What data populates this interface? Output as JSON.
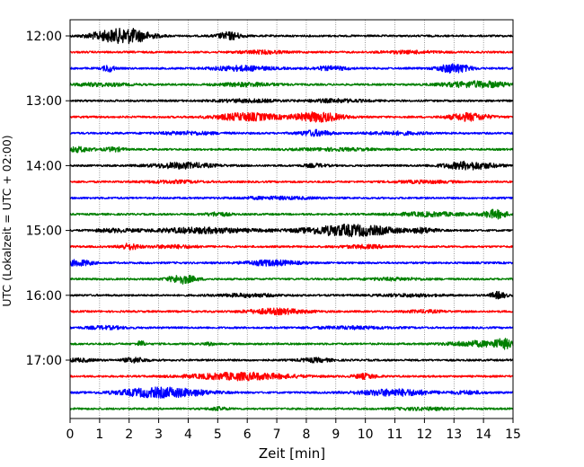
{
  "chart_data": {
    "type": "line",
    "title": "",
    "xlabel": "Zeit  [min]",
    "ylabel": "UTC (Lokalzeit = UTC + 02:00)",
    "xlim": [
      0,
      15
    ],
    "x_ticks": [
      "0",
      "1",
      "2",
      "3",
      "4",
      "5",
      "6",
      "7",
      "8",
      "9",
      "10",
      "11",
      "12",
      "13",
      "14",
      "15"
    ],
    "y_ticks": [
      {
        "label": "12:00",
        "row": 0
      },
      {
        "label": "13:00",
        "row": 4
      },
      {
        "label": "14:00",
        "row": 8
      },
      {
        "label": "15:00",
        "row": 12
      },
      {
        "label": "16:00",
        "row": 16
      },
      {
        "label": "17:00",
        "row": 20
      }
    ],
    "grid": "vertical-dotted",
    "colors": [
      "#000000",
      "#ff0000",
      "#0000ff",
      "#008000"
    ],
    "series": [
      {
        "start": "12:00",
        "color": "#000000",
        "bursts": [
          [
            1.7,
            1.3,
            4.5
          ],
          [
            2.1,
            1.0,
            4.0
          ],
          [
            5.4,
            0.6,
            4.0
          ],
          [
            1.0,
            0.8,
            1.6
          ]
        ]
      },
      {
        "start": "12:15",
        "color": "#ff0000",
        "bursts": [
          [
            6.5,
            1.2,
            1.5
          ],
          [
            11.5,
            1.5,
            1.2
          ]
        ]
      },
      {
        "start": "12:30",
        "color": "#0000ff",
        "bursts": [
          [
            1.3,
            0.3,
            3.5
          ],
          [
            5.8,
            1.5,
            2.5
          ],
          [
            8.8,
            1.0,
            1.8
          ],
          [
            13.0,
            0.8,
            4.8
          ]
        ]
      },
      {
        "start": "12:45",
        "color": "#008000",
        "bursts": [
          [
            1.0,
            1.5,
            1.5
          ],
          [
            6.0,
            1.5,
            1.8
          ],
          [
            13.5,
            1.5,
            2.5
          ],
          [
            14.3,
            1.0,
            1.5
          ]
        ]
      },
      {
        "start": "13:00",
        "color": "#000000",
        "bursts": [
          [
            6.0,
            1.5,
            1.5
          ],
          [
            9.0,
            1.5,
            1.5
          ]
        ]
      },
      {
        "start": "13:15",
        "color": "#ff0000",
        "bursts": [
          [
            6.0,
            1.6,
            4.0
          ],
          [
            8.4,
            1.2,
            5.0
          ],
          [
            13.5,
            1.0,
            4.0
          ]
        ]
      },
      {
        "start": "13:30",
        "color": "#0000ff",
        "bursts": [
          [
            4.0,
            1.5,
            1.5
          ],
          [
            8.3,
            0.8,
            3.0
          ],
          [
            11.0,
            1.5,
            1.5
          ]
        ]
      },
      {
        "start": "13:45",
        "color": "#008000",
        "bursts": [
          [
            0.3,
            0.7,
            2.5
          ],
          [
            1.5,
            0.5,
            2.0
          ],
          [
            9.0,
            2.0,
            1.2
          ]
        ]
      },
      {
        "start": "14:00",
        "color": "#000000",
        "bursts": [
          [
            3.8,
            1.5,
            3.0
          ],
          [
            13.5,
            1.3,
            4.0
          ],
          [
            8.3,
            0.6,
            1.6
          ]
        ]
      },
      {
        "start": "14:15",
        "color": "#ff0000",
        "bursts": [
          [
            3.5,
            1.5,
            1.2
          ],
          [
            12.0,
            1.5,
            1.2
          ]
        ]
      },
      {
        "start": "14:30",
        "color": "#0000ff",
        "bursts": [
          [
            7.0,
            2.0,
            1.2
          ]
        ]
      },
      {
        "start": "14:45",
        "color": "#008000",
        "bursts": [
          [
            5.0,
            0.6,
            2.0
          ],
          [
            12.2,
            1.8,
            2.0
          ],
          [
            14.4,
            0.6,
            4.5
          ]
        ]
      },
      {
        "start": "15:00",
        "color": "#000000",
        "bursts": [
          [
            4.5,
            2.5,
            2.8
          ],
          [
            9.5,
            2.3,
            6.0
          ],
          [
            1.5,
            1.0,
            1.5
          ],
          [
            12.0,
            0.6,
            2.2
          ]
        ]
      },
      {
        "start": "15:15",
        "color": "#ff0000",
        "bursts": [
          [
            2.0,
            0.5,
            3.0
          ],
          [
            3.5,
            1.2,
            1.5
          ],
          [
            10.0,
            1.3,
            1.5
          ]
        ]
      },
      {
        "start": "15:30",
        "color": "#0000ff",
        "bursts": [
          [
            0.3,
            0.7,
            3.0
          ],
          [
            6.8,
            1.3,
            2.8
          ]
        ]
      },
      {
        "start": "15:45",
        "color": "#008000",
        "bursts": [
          [
            3.8,
            0.7,
            4.5
          ],
          [
            11.0,
            1.5,
            1.2
          ]
        ]
      },
      {
        "start": "16:00",
        "color": "#000000",
        "bursts": [
          [
            6.0,
            1.5,
            1.5
          ],
          [
            11.5,
            1.5,
            1.2
          ],
          [
            14.5,
            0.4,
            3.5
          ]
        ]
      },
      {
        "start": "16:15",
        "color": "#ff0000",
        "bursts": [
          [
            7.0,
            1.5,
            2.8
          ],
          [
            12.0,
            1.0,
            1.2
          ]
        ]
      },
      {
        "start": "16:30",
        "color": "#0000ff",
        "bursts": [
          [
            1.2,
            1.0,
            1.5
          ],
          [
            9.5,
            2.0,
            1.2
          ]
        ]
      },
      {
        "start": "16:45",
        "color": "#008000",
        "bursts": [
          [
            2.4,
            0.2,
            3.0
          ],
          [
            4.7,
            0.2,
            2.0
          ],
          [
            13.8,
            1.5,
            2.8
          ],
          [
            14.7,
            0.5,
            4.0
          ]
        ]
      },
      {
        "start": "17:00",
        "color": "#000000",
        "bursts": [
          [
            0.3,
            0.8,
            1.5
          ],
          [
            2.2,
            0.6,
            2.5
          ],
          [
            8.3,
            0.8,
            2.0
          ]
        ]
      },
      {
        "start": "17:15",
        "color": "#ff0000",
        "bursts": [
          [
            5.8,
            2.5,
            3.8
          ],
          [
            10.0,
            0.6,
            2.5
          ]
        ]
      },
      {
        "start": "17:30",
        "color": "#0000ff",
        "bursts": [
          [
            2.8,
            1.8,
            4.5
          ],
          [
            4.0,
            1.5,
            2.0
          ],
          [
            11.0,
            1.8,
            3.5
          ],
          [
            13.5,
            0.8,
            1.5
          ]
        ]
      },
      {
        "start": "17:45",
        "color": "#008000",
        "bursts": [
          [
            5.0,
            0.5,
            1.5
          ],
          [
            12.0,
            1.5,
            1.2
          ]
        ]
      }
    ]
  }
}
